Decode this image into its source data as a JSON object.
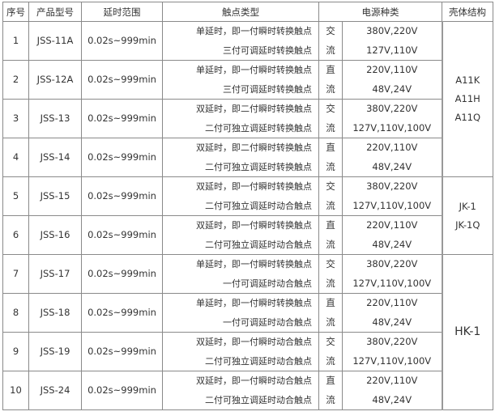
{
  "headers": [
    "序号",
    "产品型号",
    "延时范围",
    "触点类型",
    "电源种类",
    "壳体结构"
  ],
  "rows": [
    {
      "no": "1",
      "model": "JSS-11A",
      "range": "0.02s~999min",
      "contact": [
        "单延时，即一付瞬时转换触点",
        "三付可调延时转换触点"
      ],
      "kind": [
        "交",
        "流"
      ],
      "voltage": [
        "380V,220V",
        "127V,110V"
      ]
    },
    {
      "no": "2",
      "model": "JSS-12A",
      "range": "0.02s~999min",
      "contact": [
        "单延时，即一付瞬时转换触点",
        "三付可调延时转换触点"
      ],
      "kind": [
        "直",
        "流"
      ],
      "voltage": [
        "220V,110V",
        "48V,24V"
      ]
    },
    {
      "no": "3",
      "model": "JSS-13",
      "range": "0.02s~999min",
      "contact": [
        "双延时，即二付瞬时转换触点",
        "二付可独立调延时转换触点"
      ],
      "kind": [
        "交",
        "流"
      ],
      "voltage": [
        "380V,220V",
        "127V,110V,100V"
      ]
    },
    {
      "no": "4",
      "model": "JSS-14",
      "range": "0.02s~999min",
      "contact": [
        "双延时，即二付瞬时转换触点",
        "二付可独立调延时转换触点"
      ],
      "kind": [
        "直",
        "流"
      ],
      "voltage": [
        "220V,110V",
        "48V,24V"
      ]
    },
    {
      "no": "5",
      "model": "JSS-15",
      "range": "0.02s~999min",
      "contact": [
        "双延时，即一付瞬时转换触点",
        "二付可独立调延时动合触点"
      ],
      "kind": [
        "交",
        "流"
      ],
      "voltage": [
        "380V,220V",
        "127V,110V,100V"
      ]
    },
    {
      "no": "6",
      "model": "JSS-16",
      "range": "0.02s~999min",
      "contact": [
        "双延时，即一付瞬时转换触点",
        "二付可独立调延时动合触点"
      ],
      "kind": [
        "直",
        "流"
      ],
      "voltage": [
        "220V,110V",
        "48V,24V"
      ]
    },
    {
      "no": "7",
      "model": "JSS-17",
      "range": "0.02s~999min",
      "contact": [
        "单延时，即一付瞬时转换触点",
        "一付可调延时动合触点"
      ],
      "kind": [
        "交",
        "流"
      ],
      "voltage": [
        "380V,220V",
        "127V,110V,100V"
      ]
    },
    {
      "no": "8",
      "model": "JSS-18",
      "range": "0.02s~999min",
      "contact": [
        "单延时，即一付瞬时转换触点",
        "一付可调延时动合触点"
      ],
      "kind": [
        "直",
        "流"
      ],
      "voltage": [
        "220V,110V",
        "48V,24V"
      ]
    },
    {
      "no": "9",
      "model": "JSS-19",
      "range": "0.02s~999min",
      "contact": [
        "双延时，即一付瞬时动合触点",
        "二付可独立调延时动合触点"
      ],
      "kind": [
        "交",
        "流"
      ],
      "voltage": [
        "380V,220V",
        "127V,110V,100V"
      ]
    },
    {
      "no": "10",
      "model": "JSS-24",
      "range": "0.02s~999min",
      "contact": [
        "双延时，即一付瞬时动合触点",
        "二付可独立调延时动合触点"
      ],
      "kind": [
        "直",
        "流"
      ],
      "voltage": [
        "220V,110V",
        "48V,24V"
      ]
    }
  ],
  "shells": [
    {
      "rows": 4,
      "lines": [
        "A11K",
        "A11H",
        "A11Q"
      ]
    },
    {
      "rows": 2,
      "lines": [
        "JK-1",
        "JK-1Q"
      ]
    },
    {
      "rows": 4,
      "lines": [
        "HK-1"
      ]
    }
  ]
}
